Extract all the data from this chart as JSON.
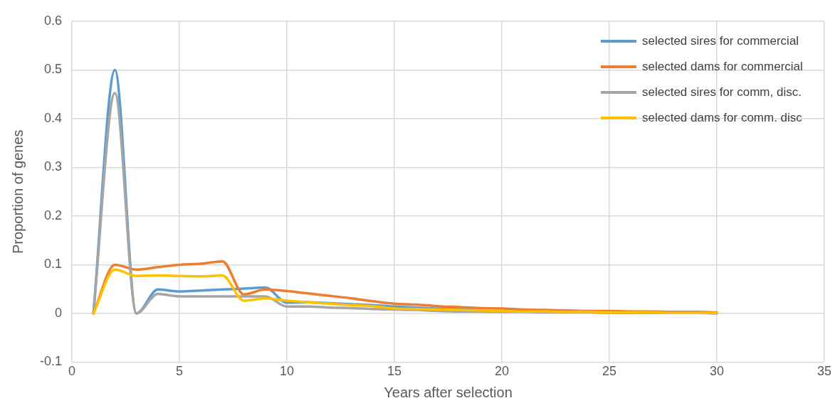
{
  "chart_data": {
    "type": "line",
    "xlabel": "Years after selection",
    "ylabel": "Proportion of genes",
    "x": [
      1,
      2,
      3,
      4,
      5,
      6,
      7,
      8,
      9,
      10,
      11,
      12,
      13,
      14,
      15,
      16,
      17,
      18,
      19,
      20,
      21,
      22,
      23,
      24,
      25,
      26,
      27,
      28,
      29,
      30
    ],
    "series": [
      {
        "name": "selected sires for commercial",
        "color": "#5b9bd5",
        "values": [
          0,
          0.5,
          0,
          0.049,
          0.045,
          0.047,
          0.049,
          0.051,
          0.053,
          0.022,
          0.023,
          0.021,
          0.019,
          0.017,
          0.014,
          0.012,
          0.01,
          0.009,
          0.008,
          null,
          null,
          null,
          null,
          null,
          null,
          null,
          null,
          null,
          null,
          null
        ]
      },
      {
        "name": "selected dams for commercial",
        "color": "#ed7d31",
        "values": [
          0,
          0.1,
          0.09,
          0.095,
          0.1,
          0.102,
          0.107,
          0.039,
          0.049,
          0.046,
          0.041,
          0.036,
          0.031,
          0.025,
          0.02,
          0.018,
          0.015,
          0.013,
          0.011,
          0.01,
          0.008,
          0.007,
          0.006,
          0.005,
          0.005,
          0.004,
          0.004,
          0.003,
          0.003,
          0.002
        ]
      },
      {
        "name": "selected sires for comm, disc.",
        "color": "#a5a5a5",
        "values": [
          0,
          0.453,
          0,
          0.04,
          0.035,
          0.035,
          0.035,
          0.035,
          0.035,
          0.014,
          0.014,
          0.012,
          0.011,
          0.009,
          0.008,
          0.007,
          0.005,
          0.004,
          0.004,
          0.003,
          0.003,
          0.002,
          0.002,
          0.002,
          0.001,
          0.001,
          0.001,
          0.001,
          0.001,
          0
        ]
      },
      {
        "name": "selected dams for comm. disc",
        "color": "#ffc000",
        "values": [
          0,
          0.09,
          0.077,
          0.078,
          0.077,
          0.076,
          0.078,
          0.026,
          0.031,
          0.026,
          0.023,
          0.02,
          0.017,
          0.015,
          0.01,
          0.009,
          0.008,
          0.007,
          0.006,
          0.005,
          0.004,
          0.004,
          0.003,
          0.003,
          0.002,
          0.002,
          0.002,
          0.001,
          0.001,
          0.001
        ]
      }
    ],
    "xlim": [
      0,
      35
    ],
    "xticks": [
      0,
      5,
      10,
      15,
      20,
      25,
      30,
      35
    ],
    "ylim": [
      -0.1,
      0.6
    ],
    "yticks": [
      -0.1,
      0,
      0.1,
      0.2,
      0.3,
      0.4,
      0.5,
      0.6
    ],
    "grid": true,
    "legend": "top right",
    "marker": "none",
    "line_style": "solid"
  }
}
